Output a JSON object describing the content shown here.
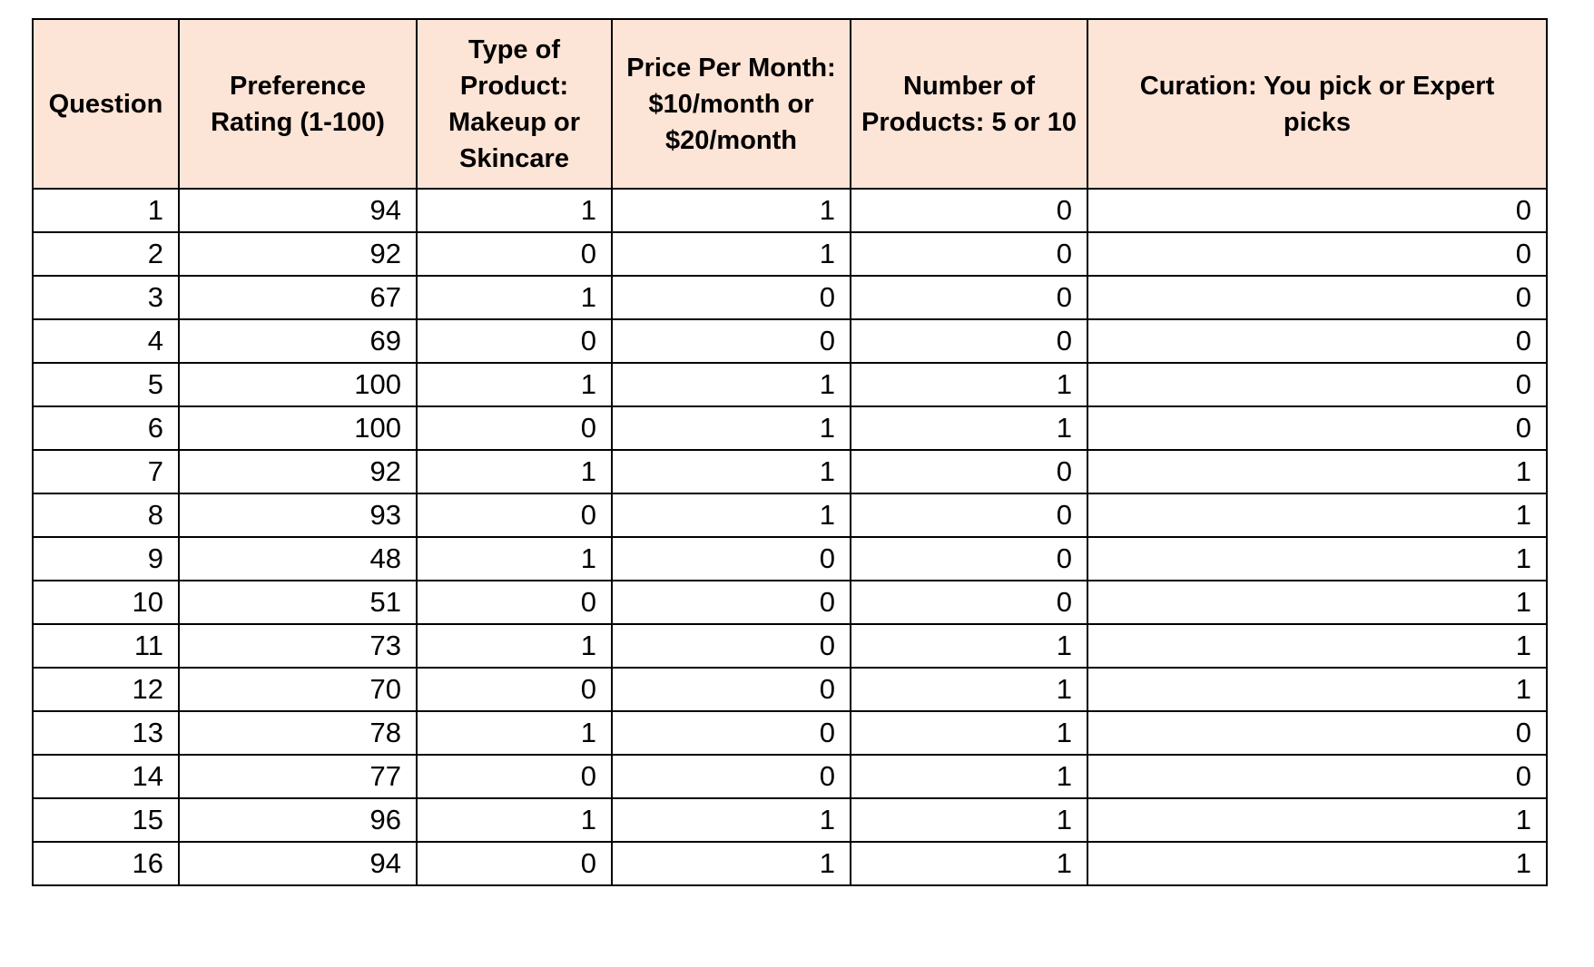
{
  "table": {
    "columns": [
      "Question",
      "Preference Rating (1-100)",
      "Type of Product: Makeup or Skincare",
      "Price Per Month: $10/month or $20/month",
      "Number of Products: 5 or 10",
      "Curation: You pick or Expert picks"
    ],
    "rows": [
      [
        "1",
        "94",
        "1",
        "1",
        "0",
        "0"
      ],
      [
        "2",
        "92",
        "0",
        "1",
        "0",
        "0"
      ],
      [
        "3",
        "67",
        "1",
        "0",
        "0",
        "0"
      ],
      [
        "4",
        "69",
        "0",
        "0",
        "0",
        "0"
      ],
      [
        "5",
        "100",
        "1",
        "1",
        "1",
        "0"
      ],
      [
        "6",
        "100",
        "0",
        "1",
        "1",
        "0"
      ],
      [
        "7",
        "92",
        "1",
        "1",
        "0",
        "1"
      ],
      [
        "8",
        "93",
        "0",
        "1",
        "0",
        "1"
      ],
      [
        "9",
        "48",
        "1",
        "0",
        "0",
        "1"
      ],
      [
        "10",
        "51",
        "0",
        "0",
        "0",
        "1"
      ],
      [
        "11",
        "73",
        "1",
        "0",
        "1",
        "1"
      ],
      [
        "12",
        "70",
        "0",
        "0",
        "1",
        "1"
      ],
      [
        "13",
        "78",
        "1",
        "0",
        "1",
        "0"
      ],
      [
        "14",
        "77",
        "0",
        "0",
        "1",
        "0"
      ],
      [
        "15",
        "96",
        "1",
        "1",
        "1",
        "1"
      ],
      [
        "16",
        "94",
        "0",
        "1",
        "1",
        "1"
      ]
    ]
  },
  "colors": {
    "header_bg": "#FCE4D6",
    "border": "#000000",
    "text": "#000000"
  },
  "chart_data": {
    "type": "table",
    "title": "",
    "categories": [
      "Question",
      "Preference Rating (1-100)",
      "Type of Product: Makeup or Skincare",
      "Price Per Month: $10/month or $20/month",
      "Number of Products: 5 or 10",
      "Curation: You pick or Expert picks"
    ],
    "series": [
      {
        "name": "Question",
        "values": [
          1,
          2,
          3,
          4,
          5,
          6,
          7,
          8,
          9,
          10,
          11,
          12,
          13,
          14,
          15,
          16
        ]
      },
      {
        "name": "Preference Rating (1-100)",
        "values": [
          94,
          92,
          67,
          69,
          100,
          100,
          92,
          93,
          48,
          51,
          73,
          70,
          78,
          77,
          96,
          94
        ]
      },
      {
        "name": "Type of Product",
        "values": [
          1,
          0,
          1,
          0,
          1,
          0,
          1,
          0,
          1,
          0,
          1,
          0,
          1,
          0,
          1,
          0
        ]
      },
      {
        "name": "Price Per Month",
        "values": [
          1,
          1,
          0,
          0,
          1,
          1,
          1,
          1,
          0,
          0,
          0,
          0,
          0,
          0,
          1,
          1
        ]
      },
      {
        "name": "Number of Products",
        "values": [
          0,
          0,
          0,
          0,
          1,
          1,
          0,
          0,
          0,
          0,
          1,
          1,
          1,
          1,
          1,
          1
        ]
      },
      {
        "name": "Curation",
        "values": [
          0,
          0,
          0,
          0,
          0,
          0,
          1,
          1,
          1,
          1,
          1,
          1,
          0,
          0,
          1,
          1
        ]
      }
    ]
  }
}
